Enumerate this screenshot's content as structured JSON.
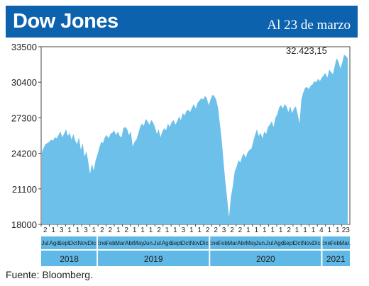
{
  "header": {
    "title": "Dow Jones",
    "date_label": "Al 23 de marzo",
    "bg_color": "#0d62ae"
  },
  "footer": {
    "source": "Fuente: Bloomberg."
  },
  "chart_data": {
    "type": "area",
    "color": "#6cc0ea",
    "ylim": [
      18000,
      33500
    ],
    "yticks": [
      "33500",
      "30400",
      "27300",
      "24200",
      "21100",
      "18000"
    ],
    "annotation": "32.423,15",
    "day_ticks": [
      "2",
      "1",
      "3",
      "1",
      "1",
      "3",
      "1",
      "2",
      "2",
      "1",
      "2",
      "1",
      "1",
      "1",
      "2",
      "1",
      "1",
      "3",
      "1",
      "1",
      "2",
      "2",
      "3",
      "2",
      "2",
      "1",
      "1",
      "1",
      "1",
      "1",
      "2",
      "1",
      "1",
      "1",
      "4",
      "1",
      "1",
      "23"
    ],
    "months": [
      {
        "label": "Jul.",
        "year": 0
      },
      {
        "label": "Ago.",
        "year": 0
      },
      {
        "label": "Sept.",
        "year": 0
      },
      {
        "label": "Oct.",
        "year": 0
      },
      {
        "label": "Nov.",
        "year": 0
      },
      {
        "label": "Dic.",
        "year": 0
      },
      {
        "label": "Ene.",
        "year": 1
      },
      {
        "label": "Feb.",
        "year": 1
      },
      {
        "label": "Mar.",
        "year": 1
      },
      {
        "label": "Abr.",
        "year": 1
      },
      {
        "label": "May.",
        "year": 1
      },
      {
        "label": "Jun.",
        "year": 1
      },
      {
        "label": "Jul.",
        "year": 1
      },
      {
        "label": "Ago.",
        "year": 1
      },
      {
        "label": "Sept.",
        "year": 1
      },
      {
        "label": "Oct.",
        "year": 1
      },
      {
        "label": "Nov.",
        "year": 1
      },
      {
        "label": "Dic.",
        "year": 1
      },
      {
        "label": "Ene.",
        "year": 2
      },
      {
        "label": "Feb.",
        "year": 2
      },
      {
        "label": "Mar.",
        "year": 2
      },
      {
        "label": "Abr.",
        "year": 2
      },
      {
        "label": "May.",
        "year": 2
      },
      {
        "label": "Jun.",
        "year": 2
      },
      {
        "label": "Jul.",
        "year": 2
      },
      {
        "label": "Ago.",
        "year": 2
      },
      {
        "label": "Sept.",
        "year": 2
      },
      {
        "label": "Oct.",
        "year": 2
      },
      {
        "label": "Nov.",
        "year": 2
      },
      {
        "label": "Dic.",
        "year": 2
      },
      {
        "label": "Ene.",
        "year": 3
      },
      {
        "label": "Feb.",
        "year": 3
      },
      {
        "label": "Mar.",
        "year": 3
      }
    ],
    "years": [
      "2018",
      "2019",
      "2020",
      "2021"
    ],
    "series": [
      {
        "values": [
          24300,
          24700,
          25000,
          25100,
          25200,
          25400,
          25300,
          25600,
          25500,
          25800,
          26100,
          25600,
          25900,
          26300,
          25700,
          26000,
          25400,
          25900,
          25300,
          25000,
          25600,
          24500,
          25100,
          23900,
          24400,
          23500,
          22400,
          23300,
          22700,
          23600,
          24100,
          24700,
          25200,
          25100,
          25600,
          25800,
          25500,
          25900,
          26000,
          26200,
          25800,
          26100,
          25700,
          25600,
          26400,
          26500,
          26300,
          25800,
          26100,
          24800,
          25200,
          25400,
          25900,
          26500,
          26800,
          26600,
          27200,
          27000,
          26700,
          27100,
          26900,
          26500,
          25900,
          26300,
          25600,
          26100,
          26400,
          26200,
          26800,
          26500,
          26900,
          27100,
          26700,
          27000,
          27400,
          27100,
          27700,
          27500,
          27900,
          28000,
          27800,
          28200,
          28500,
          28100,
          28600,
          28800,
          29000,
          28900,
          29200,
          29000,
          28400,
          28900,
          29300,
          29200,
          28900,
          28200,
          26800,
          25400,
          23500,
          21700,
          20200,
          18600,
          20400,
          21300,
          22600,
          23000,
          23600,
          23400,
          23900,
          24200,
          23800,
          24300,
          24500,
          24600,
          25200,
          25800,
          26300,
          25700,
          26000,
          25500,
          26100,
          25900,
          26500,
          26700,
          27000,
          26500,
          27300,
          27600,
          28200,
          28400,
          28100,
          28500,
          28300,
          27800,
          28300,
          27700,
          28100,
          28300,
          27600,
          26800,
          28900,
          29500,
          29900,
          30000,
          29800,
          30100,
          30200,
          30500,
          30400,
          30700,
          30500,
          30800,
          31000,
          31200,
          30800,
          31500,
          31300,
          31100,
          31800,
          32500,
          32200,
          31600,
          32100,
          32800,
          32700,
          32500
        ]
      }
    ]
  }
}
